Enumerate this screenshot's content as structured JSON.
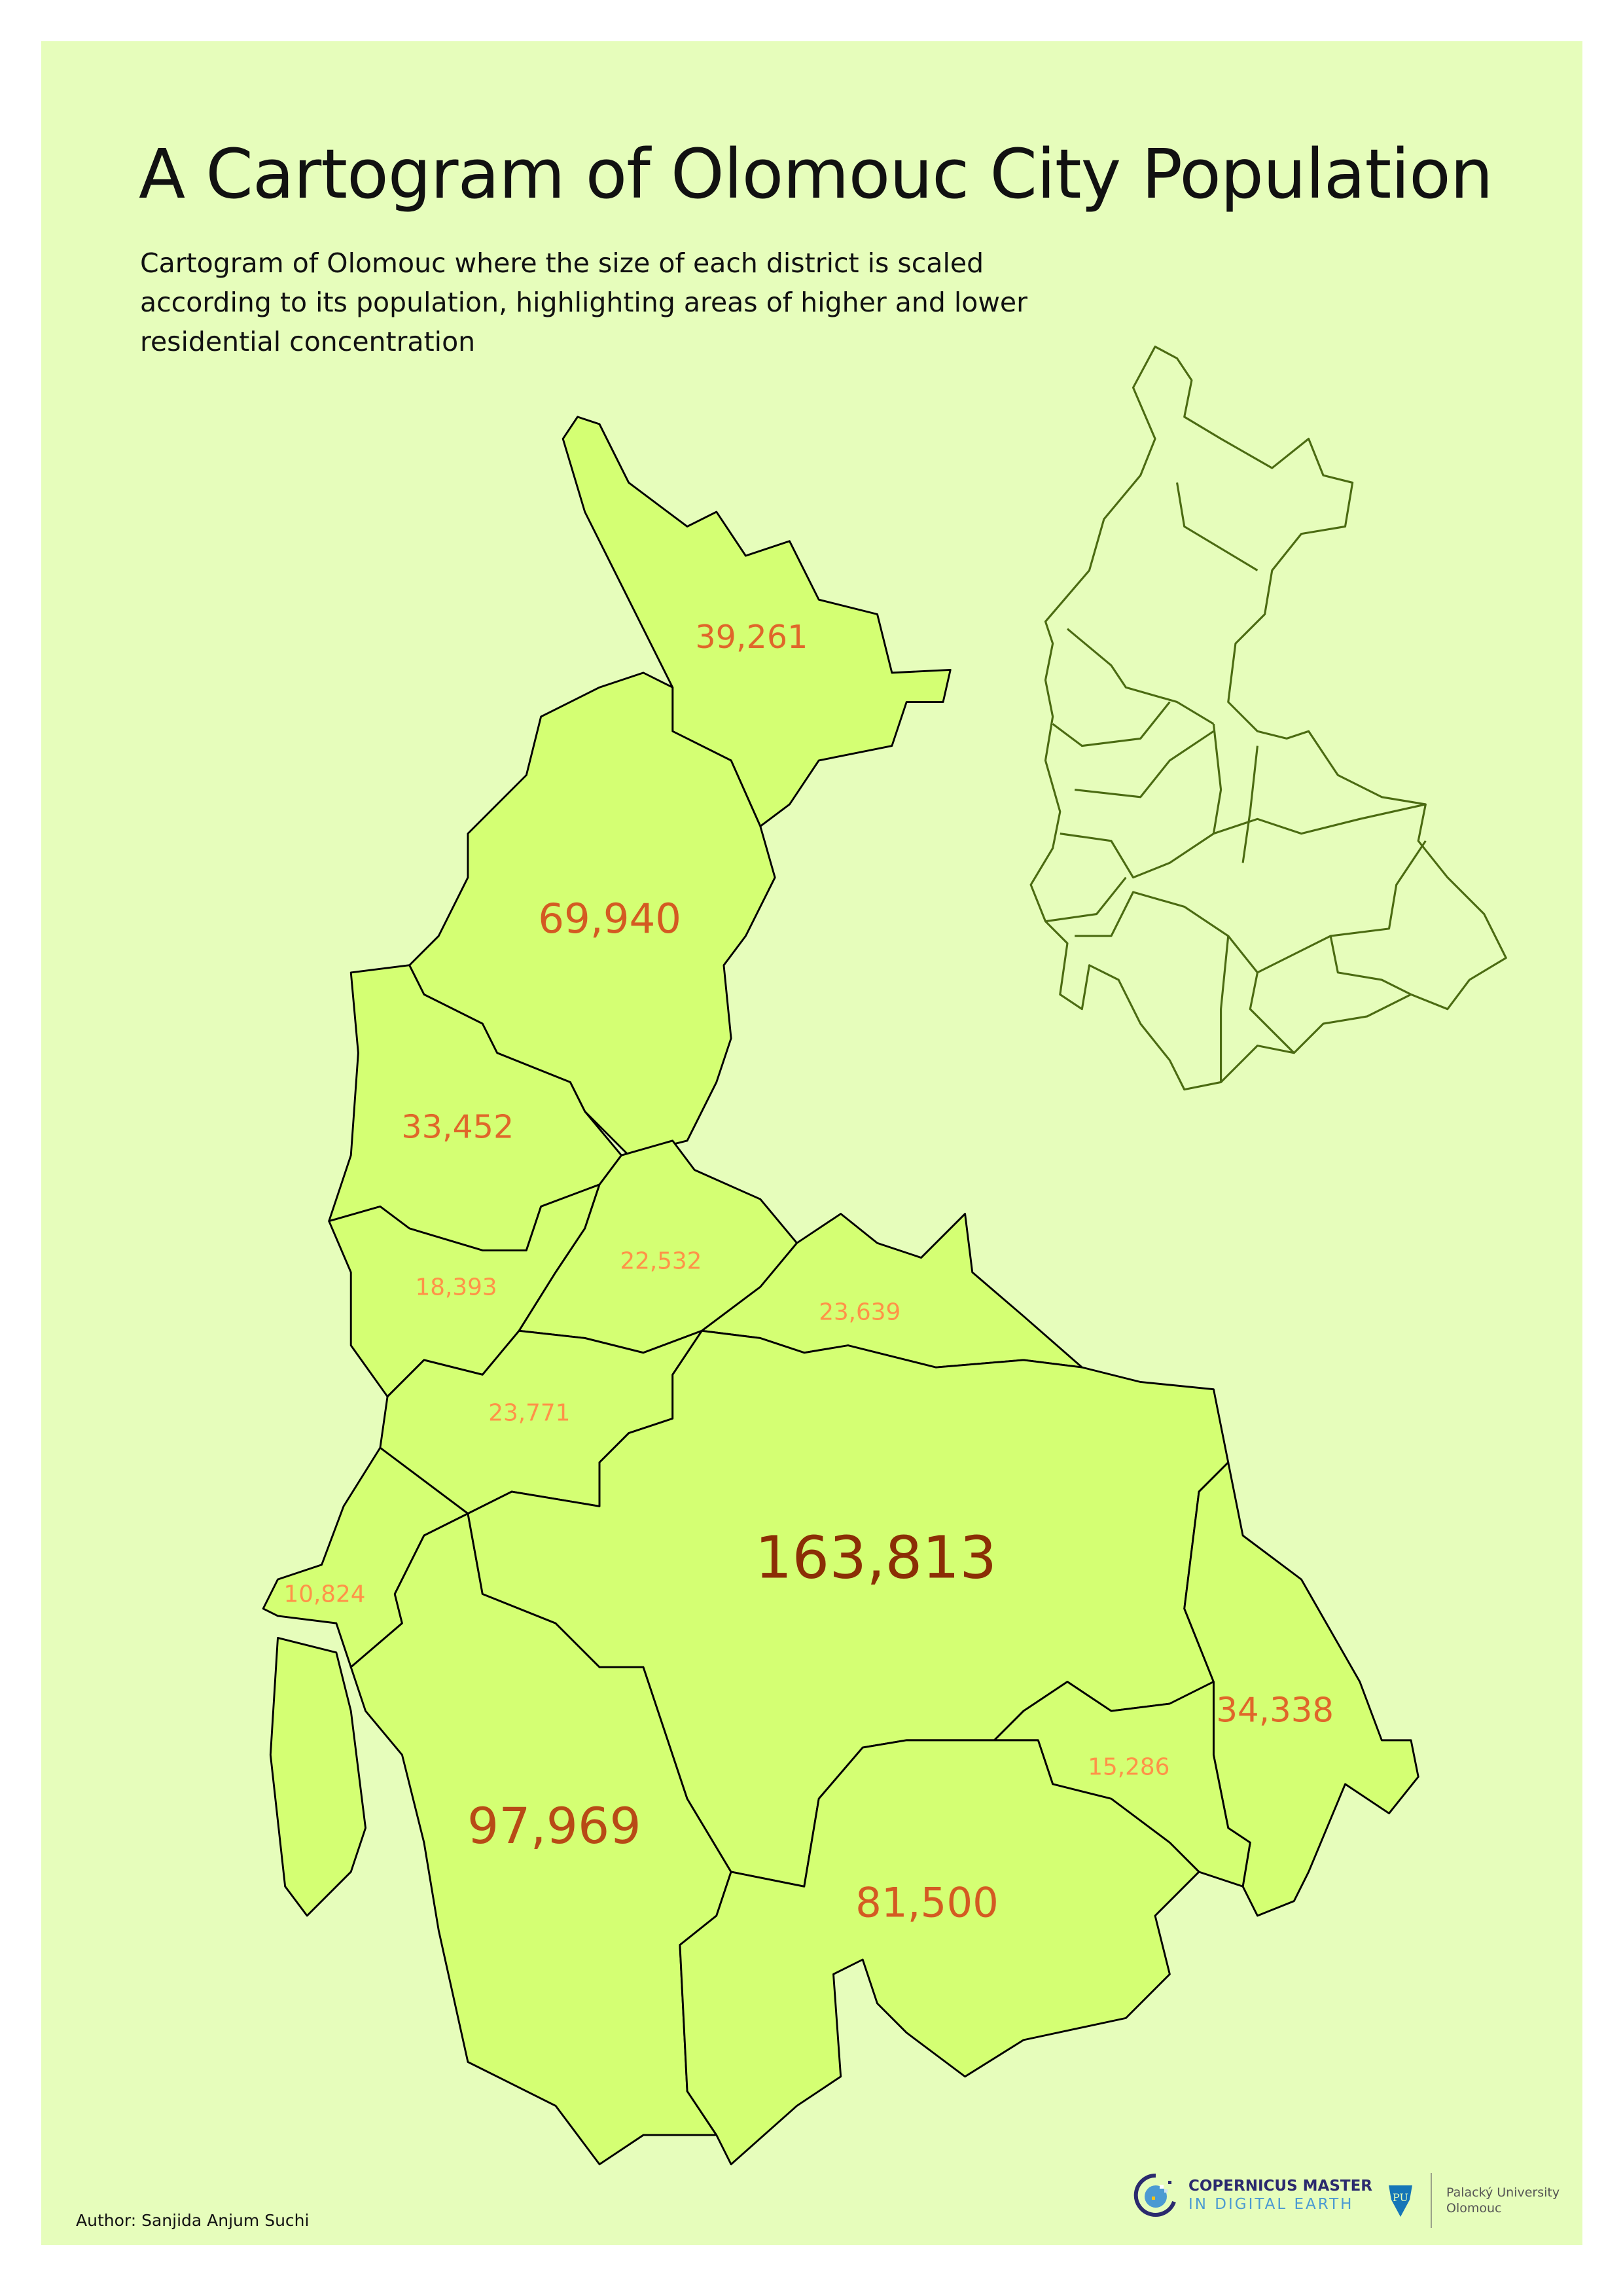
{
  "title": "A Cartogram of Olomouc City Population",
  "subtitle": "Cartogram of Olomouc where the size of each district is scaled according to its population, highlighting areas of higher and lower residential concentration",
  "author": "Author: Sanjida Anjum Suchi",
  "colors": {
    "background": "#e6fdbb",
    "district_fill": "#d4ff73",
    "district_stroke": "#000000",
    "overview_stroke": "#4b6b12",
    "label_small": "#ff9248",
    "label_medium": "#e0662a",
    "label_large": "#b84a16",
    "label_largest": "#8b2e05"
  },
  "districts": [
    {
      "population": "39,261"
    },
    {
      "population": "69,940"
    },
    {
      "population": "33,452"
    },
    {
      "population": "18,393"
    },
    {
      "population": "22,532"
    },
    {
      "population": "23,639"
    },
    {
      "population": "23,771"
    },
    {
      "population": "10,824"
    },
    {
      "population": "97,969"
    },
    {
      "population": "163,813"
    },
    {
      "population": "34,338"
    },
    {
      "population": "15,286"
    },
    {
      "population": "81,500"
    }
  ],
  "logos": {
    "copernicus_line1": "COPERNICUS MASTER",
    "copernicus_line2": "IN DIGITAL EARTH",
    "upol_line1": "Palacký University",
    "upol_line2": "Olomouc"
  }
}
